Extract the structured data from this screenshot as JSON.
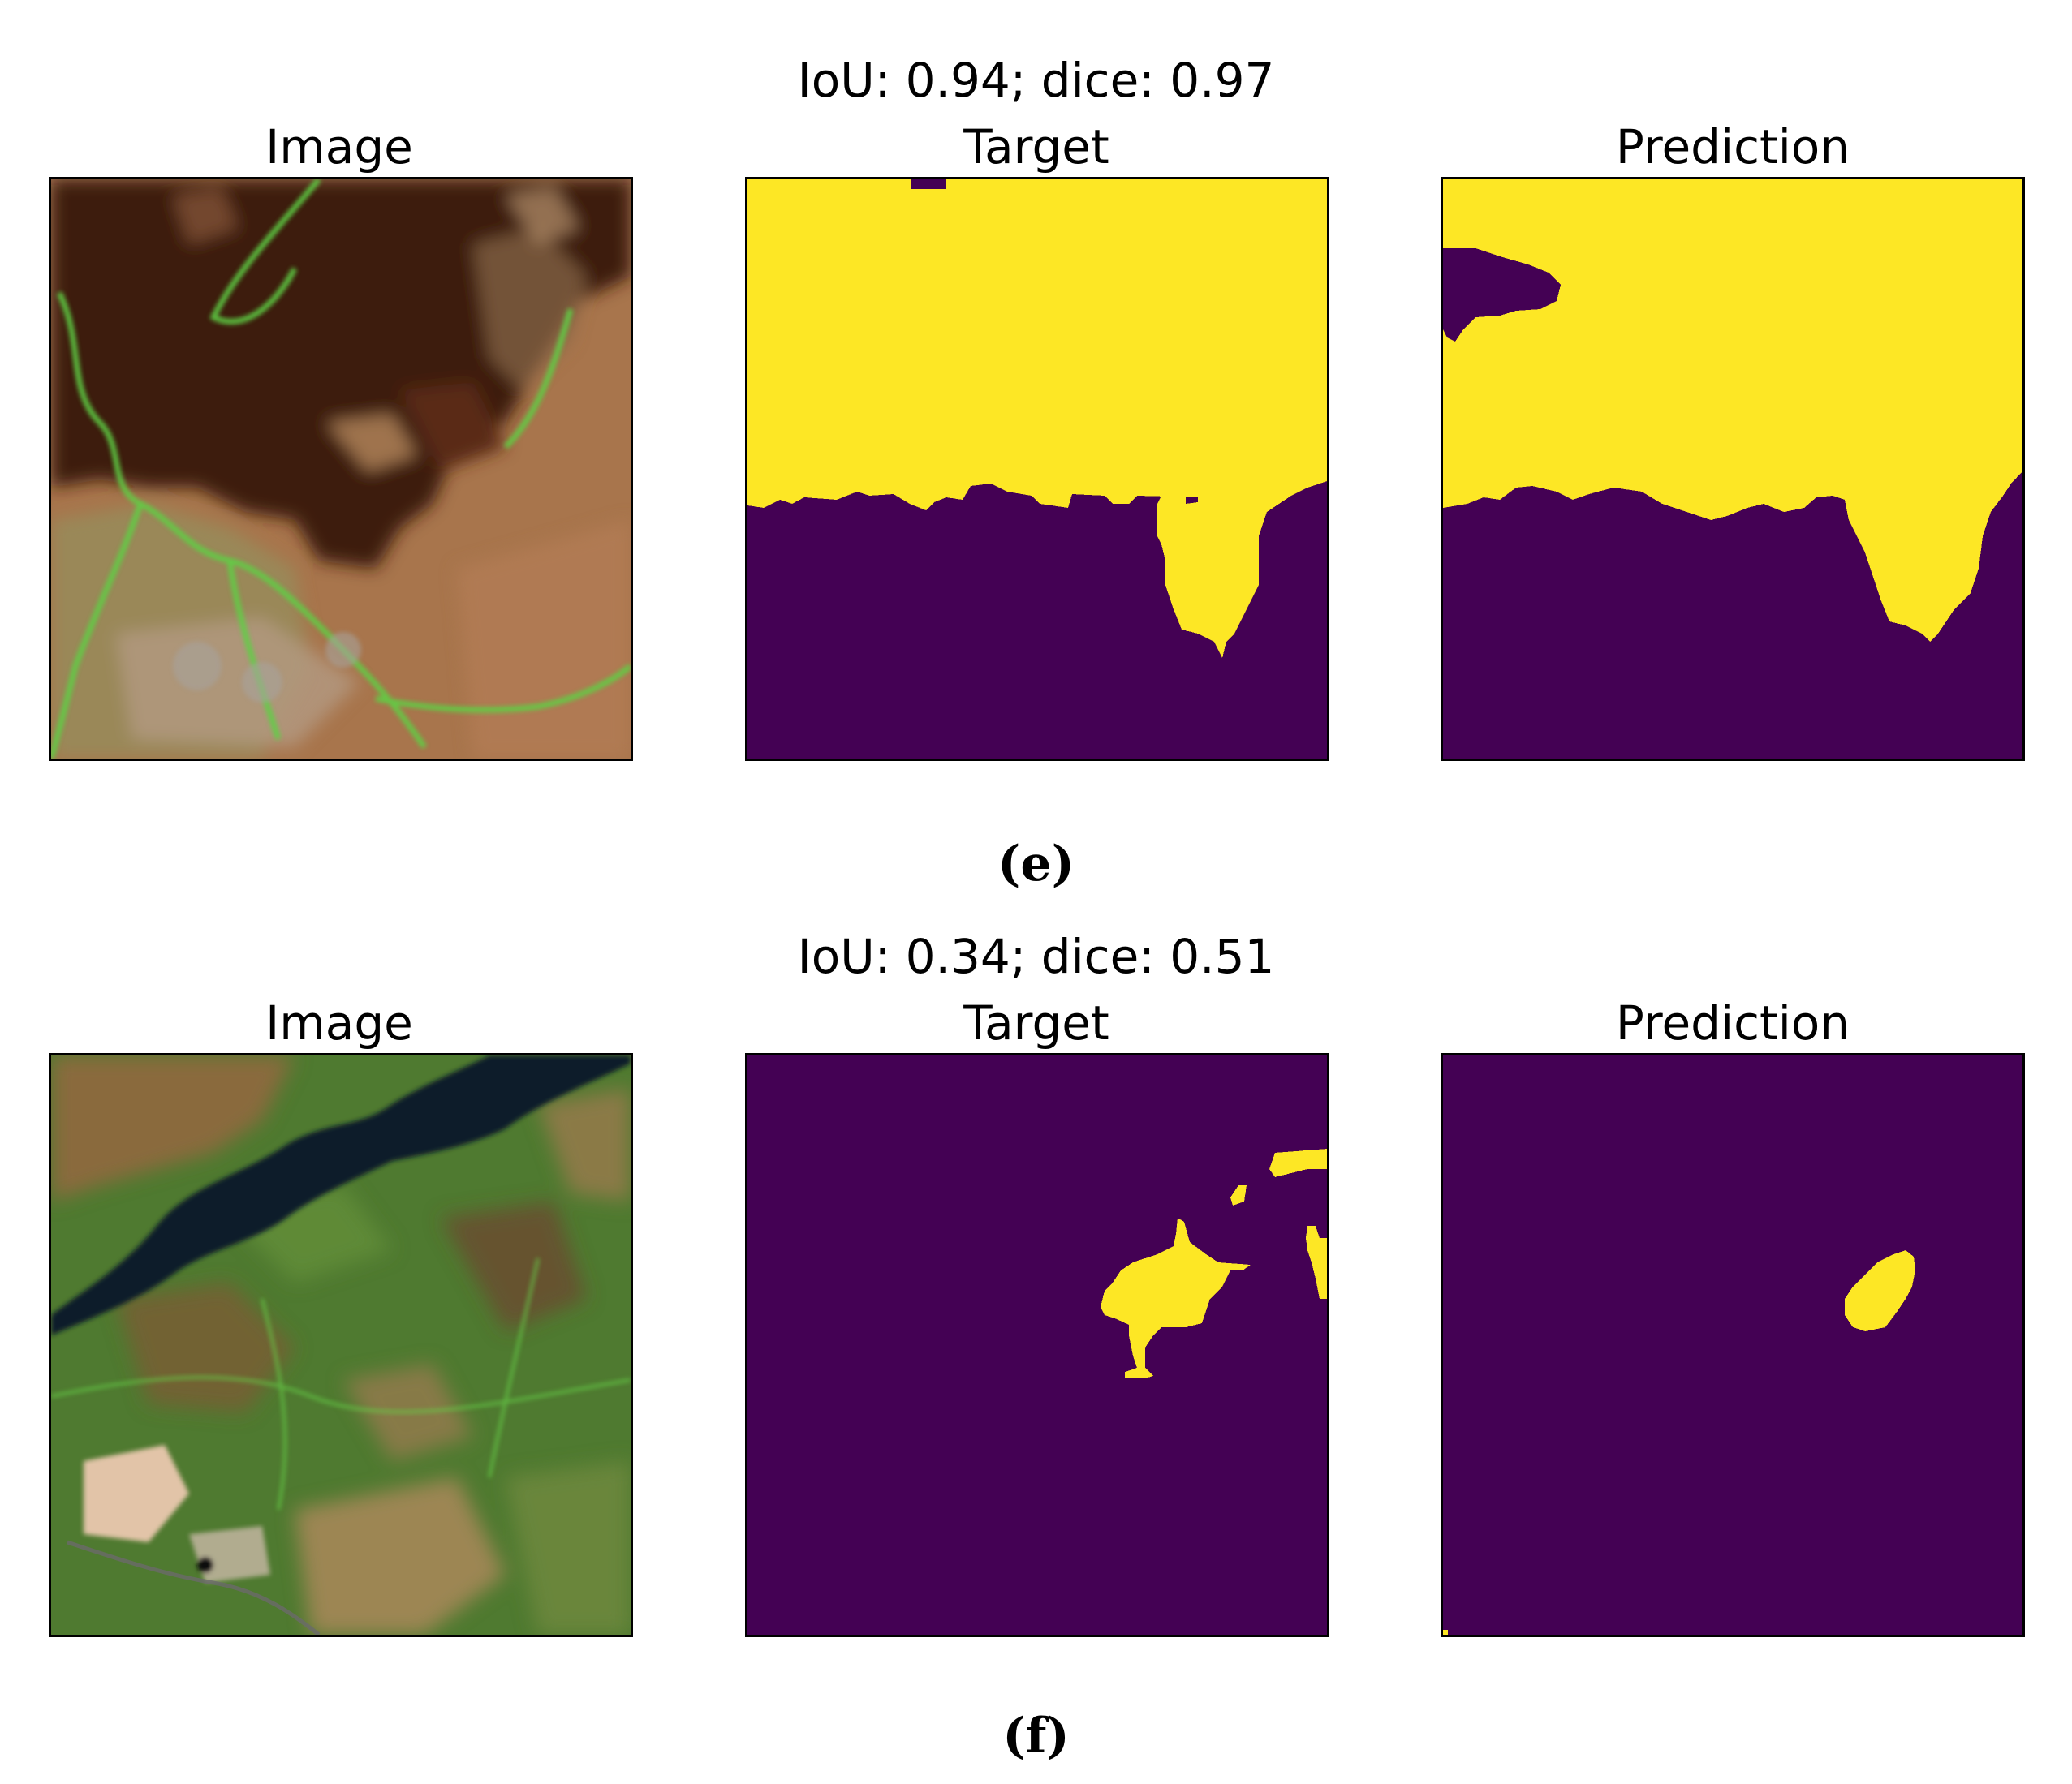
{
  "figures": [
    {
      "suptitle": "IoU: 0.94; dice: 0.97",
      "caption": "(e)",
      "panels": [
        {
          "title": "Image",
          "content": "satellite-image-burned-area-with-river"
        },
        {
          "title": "Target",
          "content": "binary-mask"
        },
        {
          "title": "Prediction",
          "content": "binary-mask"
        }
      ]
    },
    {
      "suptitle": "IoU: 0.34; dice: 0.51",
      "caption": "(f)",
      "panels": [
        {
          "title": "Image",
          "content": "satellite-image-reservoir-and-fields"
        },
        {
          "title": "Target",
          "content": "binary-mask"
        },
        {
          "title": "Prediction",
          "content": "binary-mask"
        }
      ]
    }
  ],
  "colors": {
    "mask_background": "#440154",
    "mask_foreground": "#fde725",
    "panel_border": "#000000"
  }
}
